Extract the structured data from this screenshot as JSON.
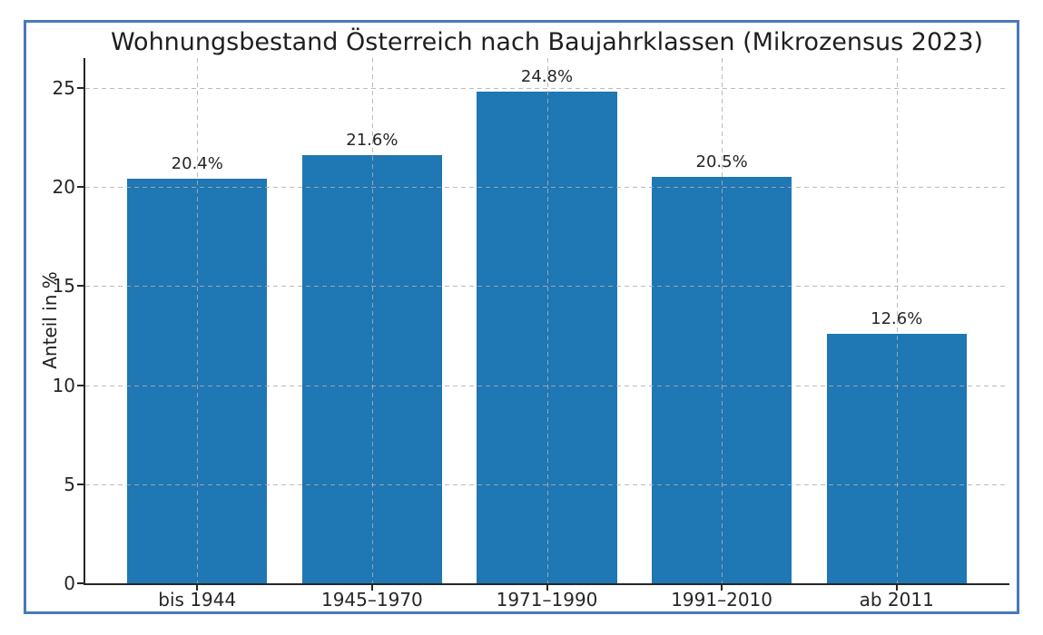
{
  "figure": {
    "border_color": "#4a79b8",
    "background_color": "#ffffff"
  },
  "chart_data": {
    "type": "bar",
    "title": "Wohnungsbestand Österreich nach Baujahrklassen (Mikrozensus 2023)",
    "categories": [
      "bis 1944",
      "1945–1970",
      "1971–1990",
      "1991–2010",
      "ab 2011"
    ],
    "values": [
      20.4,
      21.6,
      24.8,
      20.5,
      12.6
    ],
    "bar_labels": [
      "20.4%",
      "21.6%",
      "24.8%",
      "20.5%",
      "12.6%"
    ],
    "xlabel": "",
    "ylabel": "Anteil in %",
    "yticks": [
      0,
      5,
      10,
      15,
      20,
      25
    ],
    "ytick_labels": [
      "0",
      "5",
      "10",
      "15",
      "20",
      "25"
    ],
    "ylim": [
      0,
      26.5
    ],
    "bar_color": "#1f77b4",
    "grid": {
      "horizontal": true,
      "vertical": true,
      "style": "dashed",
      "color": "#afafaf",
      "drawn_above_bars": true
    },
    "legend_position": "none"
  }
}
